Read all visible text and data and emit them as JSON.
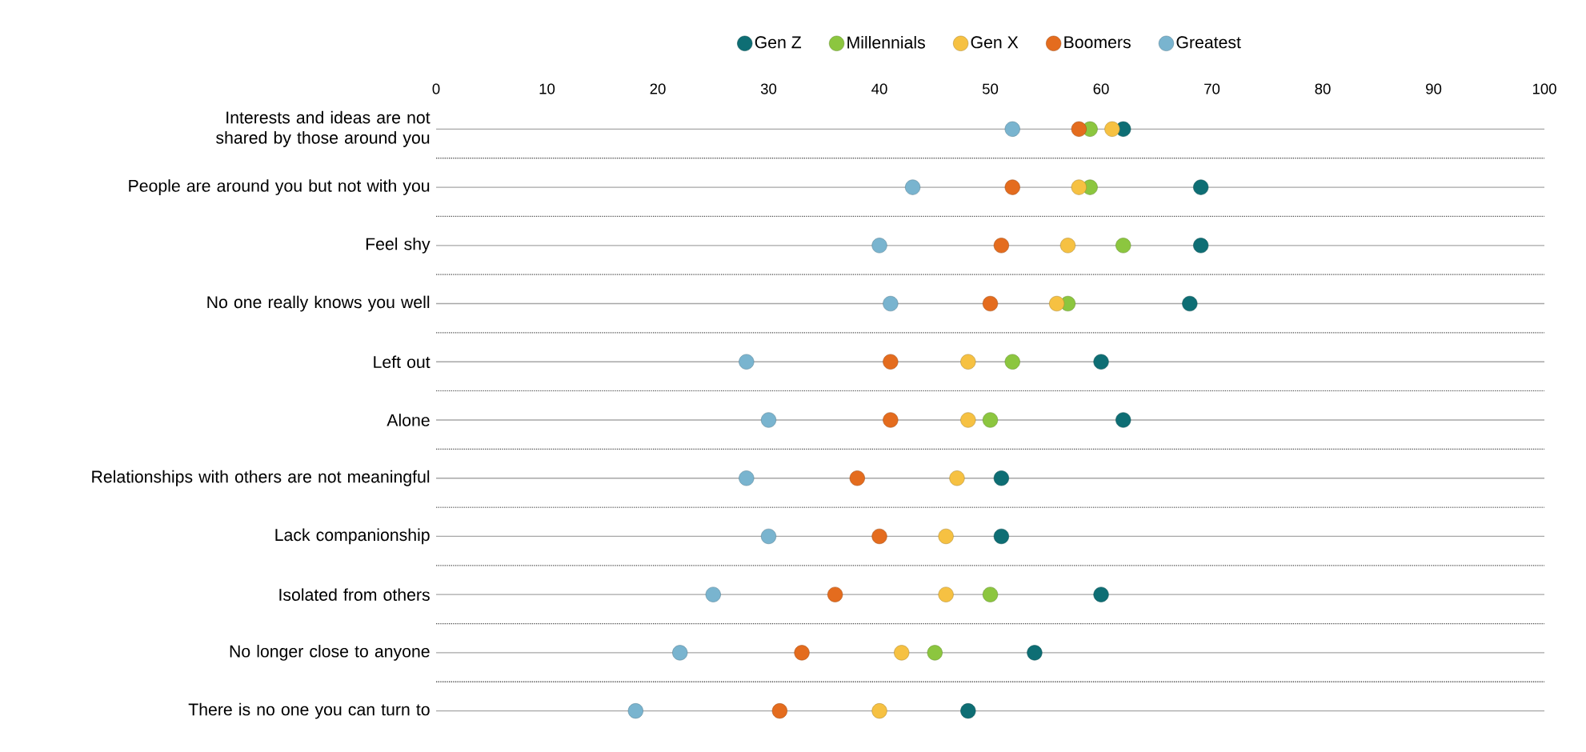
{
  "chart_data": {
    "type": "scatter",
    "orientation": "horizontal",
    "categories": [
      "Interests and ideas are not shared by those around you",
      "People are around you but not with you",
      "Feel shy",
      "No one really knows you well",
      "Left out",
      "Alone",
      "Relationships with others are not meaningful",
      "Lack companionship",
      "Isolated from others",
      "No longer close to anyone",
      "There is no one you can turn to"
    ],
    "series": [
      {
        "name": "Gen Z",
        "color": "#0e6e74",
        "values": [
          62,
          69,
          69,
          68,
          60,
          62,
          51,
          51,
          60,
          54,
          48
        ]
      },
      {
        "name": "Millennials",
        "color": "#8cc63f",
        "values": [
          59,
          59,
          62,
          57,
          52,
          50,
          null,
          null,
          50,
          45,
          null
        ]
      },
      {
        "name": "Gen X",
        "color": "#f6c142",
        "values": [
          61,
          58,
          57,
          56,
          48,
          48,
          47,
          46,
          46,
          42,
          40
        ]
      },
      {
        "name": "Boomers",
        "color": "#e46c1e",
        "values": [
          58,
          52,
          51,
          50,
          41,
          41,
          38,
          40,
          36,
          33,
          31
        ]
      },
      {
        "name": "Greatest",
        "color": "#79b4cf",
        "values": [
          52,
          43,
          40,
          41,
          28,
          30,
          28,
          30,
          25,
          22,
          18
        ]
      }
    ],
    "xlim": [
      0,
      100
    ],
    "xticks": [
      0,
      10,
      20,
      30,
      40,
      50,
      60,
      70,
      80,
      90,
      100
    ],
    "grid": "y",
    "legend": "top",
    "marker": "circle"
  }
}
